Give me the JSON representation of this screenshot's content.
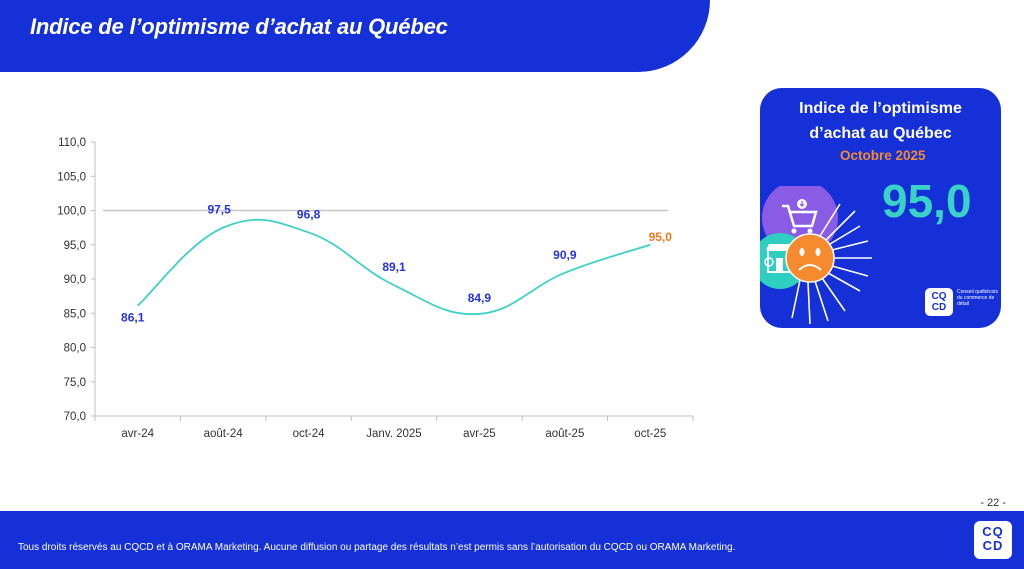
{
  "header": {
    "title": "Indice de l’optimisme d’achat au Québec"
  },
  "chart_data": {
    "type": "line",
    "title": "",
    "xlabel": "",
    "ylabel": "",
    "categories": [
      "avr-24",
      "août-24",
      "oct-24",
      "Janv. 2025",
      "avr-25",
      "août-25",
      "oct-25"
    ],
    "series": [
      {
        "name": "Indice de l’optimisme d’achat",
        "values": [
          86.1,
          97.5,
          96.8,
          89.1,
          84.9,
          90.9,
          95.0
        ],
        "color": "#3fd1c8"
      }
    ],
    "data_labels": [
      "86,1",
      "97,5",
      "96,8",
      "89,1",
      "84,9",
      "90,9",
      "95,0"
    ],
    "data_label_colors": [
      "#2233dd",
      "#2233dd",
      "#2233dd",
      "#2233dd",
      "#2233dd",
      "#2233dd",
      "#f07a1a"
    ],
    "ylim": [
      70,
      110
    ],
    "yticks": [
      70,
      75,
      80,
      85,
      90,
      95,
      100,
      105,
      110
    ],
    "ytick_labels": [
      "70,0",
      "75,0",
      "80,0",
      "85,0",
      "90,0",
      "95,0",
      "100,0",
      "105,0",
      "110,0"
    ],
    "reference_line": {
      "value": 100,
      "color": "#c8c8c8"
    },
    "grid": false,
    "legend": "none",
    "smooth": true
  },
  "card": {
    "title_line1": "Indice de l’optimisme",
    "title_line2": "d’achat au Québec",
    "month": "Octobre 2025",
    "value": "95,0",
    "icons": [
      "shopping-cart-icon",
      "storefront-icon",
      "sad-face-sun-icon"
    ],
    "logo": "CQ CD",
    "logo_text": "Conseil québécois du commerce de détail"
  },
  "page_number": "- 22 -",
  "footer": {
    "text": "Tous droits réservés au CQCD et à ORAMA Marketing. Aucune diffusion ou partage des résultats n’est permis sans l’autorisation du CQCD ou ORAMA Marketing.",
    "logo": "CQ CD"
  },
  "colors": {
    "brand_blue": "#1530d6",
    "teal": "#3fd1c8",
    "orange": "#f07a1a",
    "label_blue": "#2233dd"
  }
}
